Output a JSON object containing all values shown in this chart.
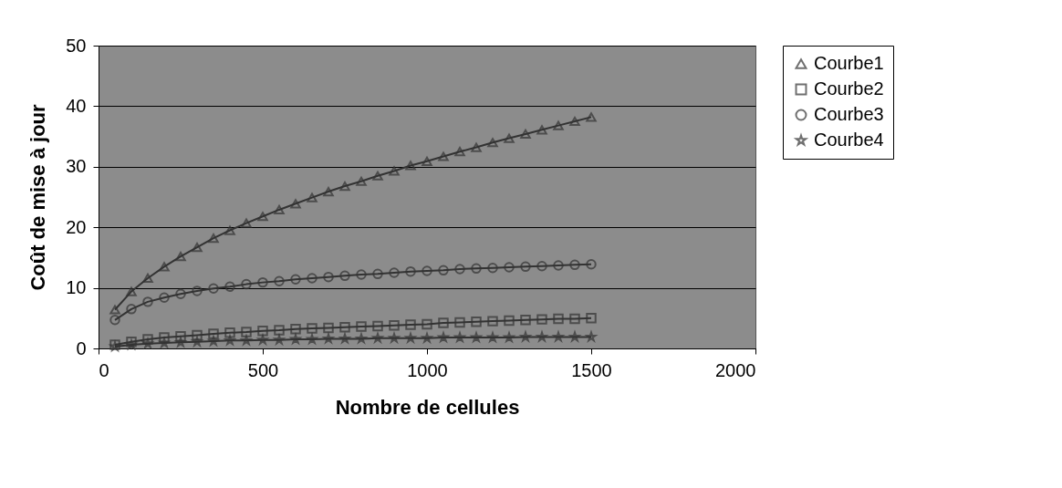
{
  "chart_data": {
    "type": "line",
    "xlabel": "Nombre de cellules",
    "ylabel": "Coût de mise à jour",
    "x": [
      50,
      100,
      150,
      200,
      250,
      300,
      350,
      400,
      450,
      500,
      550,
      600,
      650,
      700,
      750,
      800,
      850,
      900,
      950,
      1000,
      1050,
      1100,
      1150,
      1200,
      1250,
      1300,
      1350,
      1400,
      1450,
      1500
    ],
    "xlim": [
      0,
      2000
    ],
    "xticks": [
      0,
      500,
      1000,
      1500,
      2000
    ],
    "ylim": [
      0,
      50
    ],
    "yticks": [
      0,
      10,
      20,
      30,
      40,
      50
    ],
    "grid": "y",
    "legend": "right",
    "line_style": "solid",
    "series": [
      {
        "name": "Courbe1",
        "color": "#333333",
        "marker": "triangle",
        "values": [
          6.4,
          9.4,
          11.6,
          13.5,
          15.2,
          16.7,
          18.2,
          19.5,
          20.7,
          21.8,
          22.9,
          23.9,
          24.9,
          25.9,
          26.8,
          27.6,
          28.5,
          29.3,
          30.2,
          30.9,
          31.7,
          32.5,
          33.2,
          34.0,
          34.7,
          35.4,
          36.1,
          36.8,
          37.5,
          38.2
        ]
      },
      {
        "name": "Courbe2",
        "color": "#333333",
        "marker": "square",
        "values": [
          0.6,
          1.1,
          1.5,
          1.8,
          2.0,
          2.2,
          2.4,
          2.6,
          2.7,
          2.9,
          3.0,
          3.2,
          3.3,
          3.4,
          3.5,
          3.6,
          3.7,
          3.8,
          3.9,
          4.0,
          4.2,
          4.3,
          4.4,
          4.5,
          4.6,
          4.7,
          4.8,
          4.9,
          4.9,
          5.0
        ]
      },
      {
        "name": "Courbe3",
        "color": "#333333",
        "marker": "circle",
        "values": [
          4.7,
          6.5,
          7.7,
          8.4,
          9.0,
          9.5,
          9.9,
          10.2,
          10.6,
          10.9,
          11.1,
          11.4,
          11.6,
          11.8,
          12.0,
          12.2,
          12.3,
          12.5,
          12.7,
          12.8,
          12.9,
          13.1,
          13.2,
          13.3,
          13.4,
          13.5,
          13.6,
          13.7,
          13.8,
          13.9
        ]
      },
      {
        "name": "Courbe4",
        "color": "#333333",
        "marker": "star",
        "values": [
          0.3,
          0.6,
          0.8,
          0.9,
          1.0,
          1.1,
          1.2,
          1.3,
          1.3,
          1.4,
          1.4,
          1.5,
          1.5,
          1.6,
          1.6,
          1.6,
          1.7,
          1.7,
          1.7,
          1.7,
          1.8,
          1.8,
          1.8,
          1.8,
          1.8,
          1.9,
          1.9,
          1.9,
          1.9,
          1.9
        ]
      }
    ]
  }
}
